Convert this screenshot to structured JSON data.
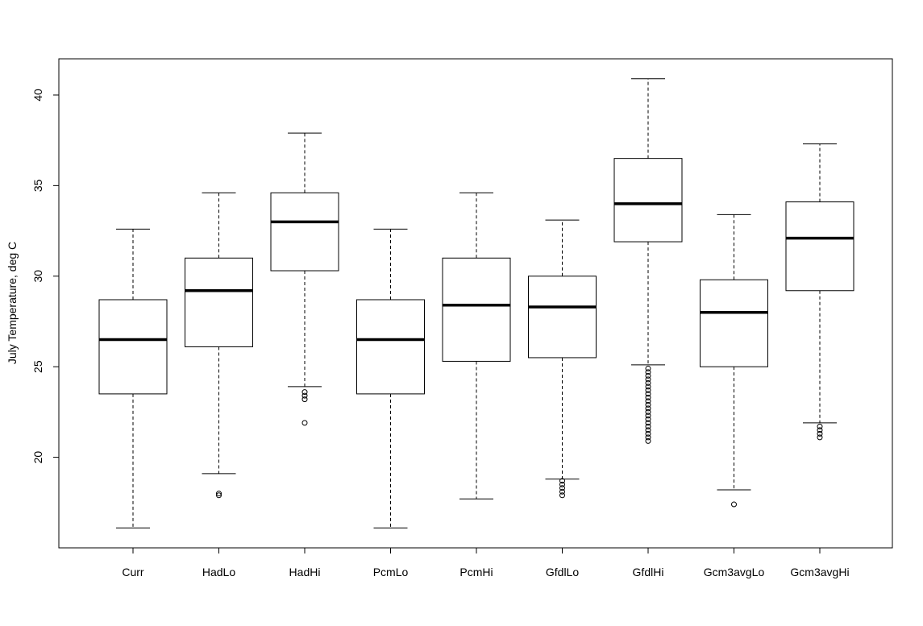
{
  "chart_data": {
    "type": "box",
    "title": "",
    "xlabel": "",
    "ylabel": "July Temperature, deg C",
    "ylim": [
      15.0,
      42.0
    ],
    "y_ticks": [
      20,
      25,
      30,
      35,
      40
    ],
    "grid": false,
    "legend": "none",
    "categories": [
      "Curr",
      "HadLo",
      "HadHi",
      "PcmLo",
      "PcmHi",
      "GfdlLo",
      "GfdlHi",
      "Gcm3avgLo",
      "Gcm3avgHi"
    ],
    "boxes": [
      {
        "category": "Curr",
        "whisker_low": 16.1,
        "q1": 23.5,
        "median": 26.5,
        "q3": 28.7,
        "whisker_high": 32.6,
        "outliers": []
      },
      {
        "category": "HadLo",
        "whisker_low": 19.1,
        "q1": 26.1,
        "median": 29.2,
        "q3": 31.0,
        "whisker_high": 34.6,
        "outliers": [
          17.9,
          18.0
        ]
      },
      {
        "category": "HadHi",
        "whisker_low": 23.9,
        "q1": 30.3,
        "median": 33.0,
        "q3": 34.6,
        "whisker_high": 37.9,
        "outliers": [
          23.2,
          23.4,
          23.6,
          21.9
        ]
      },
      {
        "category": "PcmLo",
        "whisker_low": 16.1,
        "q1": 23.5,
        "median": 26.5,
        "q3": 28.7,
        "whisker_high": 32.6,
        "outliers": []
      },
      {
        "category": "PcmHi",
        "whisker_low": 17.7,
        "q1": 25.3,
        "median": 28.4,
        "q3": 31.0,
        "whisker_high": 34.6,
        "outliers": []
      },
      {
        "category": "GfdlLo",
        "whisker_low": 18.8,
        "q1": 25.5,
        "median": 28.3,
        "q3": 30.0,
        "whisker_high": 33.1,
        "outliers": [
          18.7,
          18.5,
          18.3,
          18.1,
          17.9
        ]
      },
      {
        "category": "GfdlHi",
        "whisker_low": 25.1,
        "q1": 31.9,
        "median": 34.0,
        "q3": 36.5,
        "whisker_high": 40.9,
        "outliers": [
          24.9,
          24.7,
          24.5,
          24.3,
          24.1,
          23.9,
          23.7,
          23.5,
          23.3,
          23.1,
          22.9,
          22.7,
          22.5,
          22.3,
          22.1,
          21.9,
          21.7,
          21.5,
          21.3,
          21.1,
          20.9
        ]
      },
      {
        "category": "Gcm3avgLo",
        "whisker_low": 18.2,
        "q1": 25.0,
        "median": 28.0,
        "q3": 29.8,
        "whisker_high": 33.4,
        "outliers": [
          17.4
        ]
      },
      {
        "category": "Gcm3avgHi",
        "whisker_low": 21.9,
        "q1": 29.2,
        "median": 32.1,
        "q3": 34.1,
        "whisker_high": 37.3,
        "outliers": [
          21.7,
          21.5,
          21.3,
          21.1
        ]
      }
    ]
  }
}
